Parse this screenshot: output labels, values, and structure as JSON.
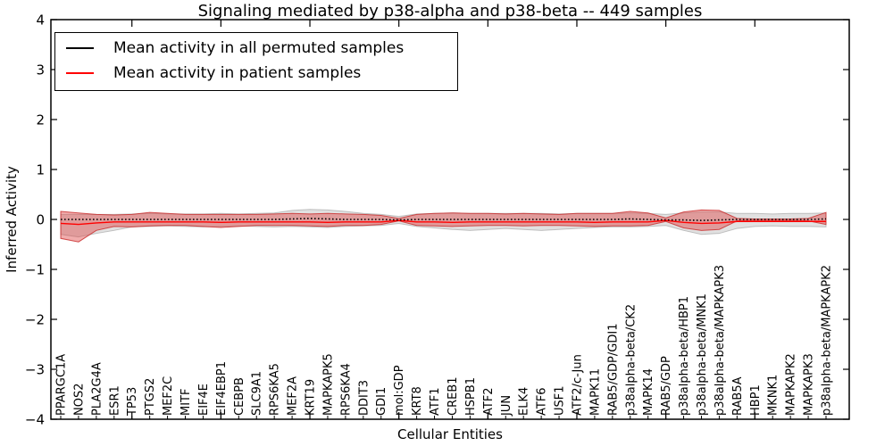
{
  "chart_data": {
    "type": "line",
    "title": "Signaling mediated by p38-alpha and p38-beta -- 449 samples",
    "xlabel": "Cellular Entities",
    "ylabel": "Inferred Activity",
    "ylim": [
      -4,
      4
    ],
    "ytick_labels": [
      "4",
      "3",
      "2",
      "1",
      "0",
      "−1",
      "−2",
      "−3",
      "−4"
    ],
    "grid": false,
    "legend_position": "upper left",
    "categories": [
      "PPARGC1A",
      "NOS2",
      "PLA2G4A",
      "ESR1",
      "TP53",
      "PTGS2",
      "MEF2C",
      "MITF",
      "EIF4E",
      "EIF4EBP1",
      "CEBPB",
      "SLC9A1",
      "RPS6KA5",
      "MEF2A",
      "KRT19",
      "MAPKAPK5",
      "RPS6KA4",
      "DDIT3",
      "GDI1",
      "mol:GDP",
      "KRT8",
      "ATF1",
      "CREB1",
      "HSPB1",
      "ATF2",
      "JUN",
      "ELK4",
      "ATF6",
      "USF1",
      "ATF2/c-Jun",
      "MAPK11",
      "RAB5/GDP/GDI1",
      "p38alpha-beta/CK2",
      "MAPK14",
      "RAB5/GDP",
      "p38alpha-beta/HBP1",
      "p38alpha-beta/MNK1",
      "p38alpha-beta/MAPKAPK3",
      "RAB5A",
      "HBP1",
      "MKNK1",
      "MAPKAPK2",
      "MAPKAPK3",
      "p38alpha-beta/MAPKAPK2"
    ],
    "series": [
      {
        "name": "Mean activity in all permuted samples",
        "color": "#000000",
        "line_style": "dotted",
        "band_fill": "rgba(170,170,170,0.35)",
        "band_edge": "rgba(150,150,150,0.55)",
        "mean": [
          0,
          0,
          0,
          0,
          0,
          0,
          0,
          0,
          0,
          0,
          0,
          0,
          0,
          0.01,
          0.02,
          0.01,
          0,
          0,
          0,
          -0.01,
          0,
          0,
          0,
          0,
          0,
          0,
          0,
          0,
          0,
          0,
          0,
          0,
          0.01,
          0,
          -0.01,
          -0.01,
          -0.02,
          -0.01,
          0,
          0,
          0,
          0,
          0,
          0.01
        ],
        "band_upper": [
          0.1,
          0.1,
          0.1,
          0.1,
          0.11,
          0.12,
          0.11,
          0.11,
          0.11,
          0.12,
          0.11,
          0.12,
          0.13,
          0.18,
          0.2,
          0.19,
          0.16,
          0.12,
          0.1,
          0.06,
          0.11,
          0.12,
          0.13,
          0.12,
          0.12,
          0.12,
          0.12,
          0.12,
          0.11,
          0.12,
          0.12,
          0.12,
          0.13,
          0.12,
          0.1,
          0.13,
          0.15,
          0.15,
          0.12,
          0.12,
          0.11,
          0.12,
          0.12,
          0.13
        ],
        "band_lower": [
          -0.3,
          -0.35,
          -0.28,
          -0.22,
          -0.15,
          -0.14,
          -0.13,
          -0.14,
          -0.15,
          -0.14,
          -0.13,
          -0.14,
          -0.15,
          -0.14,
          -0.15,
          -0.16,
          -0.14,
          -0.13,
          -0.12,
          -0.08,
          -0.14,
          -0.17,
          -0.2,
          -0.22,
          -0.2,
          -0.18,
          -0.2,
          -0.22,
          -0.2,
          -0.18,
          -0.16,
          -0.15,
          -0.15,
          -0.14,
          -0.12,
          -0.22,
          -0.3,
          -0.28,
          -0.18,
          -0.14,
          -0.13,
          -0.14,
          -0.14,
          -0.15
        ]
      },
      {
        "name": "Mean activity in patient samples",
        "color": "#ff0000",
        "line_style": "solid",
        "band_fill": "rgba(225,70,70,0.45)",
        "band_edge": "rgba(200,40,40,0.8)",
        "mean": [
          -0.08,
          -0.1,
          -0.07,
          -0.05,
          -0.05,
          -0.05,
          -0.05,
          -0.05,
          -0.05,
          -0.06,
          -0.05,
          -0.05,
          -0.05,
          -0.05,
          -0.05,
          -0.06,
          -0.05,
          -0.05,
          -0.05,
          -0.02,
          -0.05,
          -0.05,
          -0.06,
          -0.05,
          -0.05,
          -0.05,
          -0.05,
          -0.05,
          -0.05,
          -0.05,
          -0.06,
          -0.05,
          -0.05,
          -0.05,
          -0.02,
          -0.06,
          -0.08,
          -0.07,
          -0.04,
          -0.04,
          -0.04,
          -0.04,
          -0.04,
          -0.04
        ],
        "band_upper": [
          0.16,
          0.13,
          0.1,
          0.09,
          0.1,
          0.14,
          0.12,
          0.1,
          0.1,
          0.1,
          0.1,
          0.1,
          0.11,
          0.12,
          0.11,
          0.12,
          0.11,
          0.1,
          0.08,
          0.02,
          0.1,
          0.12,
          0.13,
          0.12,
          0.12,
          0.11,
          0.12,
          0.11,
          0.1,
          0.12,
          0.12,
          0.12,
          0.16,
          0.13,
          0.03,
          0.15,
          0.19,
          0.18,
          0.02,
          0.01,
          0.01,
          0.01,
          0.02,
          0.14
        ],
        "band_lower": [
          -0.38,
          -0.45,
          -0.22,
          -0.14,
          -0.15,
          -0.13,
          -0.12,
          -0.12,
          -0.14,
          -0.16,
          -0.14,
          -0.12,
          -0.12,
          -0.12,
          -0.13,
          -0.14,
          -0.12,
          -0.12,
          -0.1,
          -0.03,
          -0.12,
          -0.13,
          -0.14,
          -0.13,
          -0.12,
          -0.12,
          -0.13,
          -0.12,
          -0.12,
          -0.13,
          -0.14,
          -0.13,
          -0.13,
          -0.12,
          -0.04,
          -0.17,
          -0.22,
          -0.2,
          -0.03,
          -0.02,
          -0.02,
          -0.02,
          -0.03,
          -0.1
        ]
      }
    ]
  }
}
